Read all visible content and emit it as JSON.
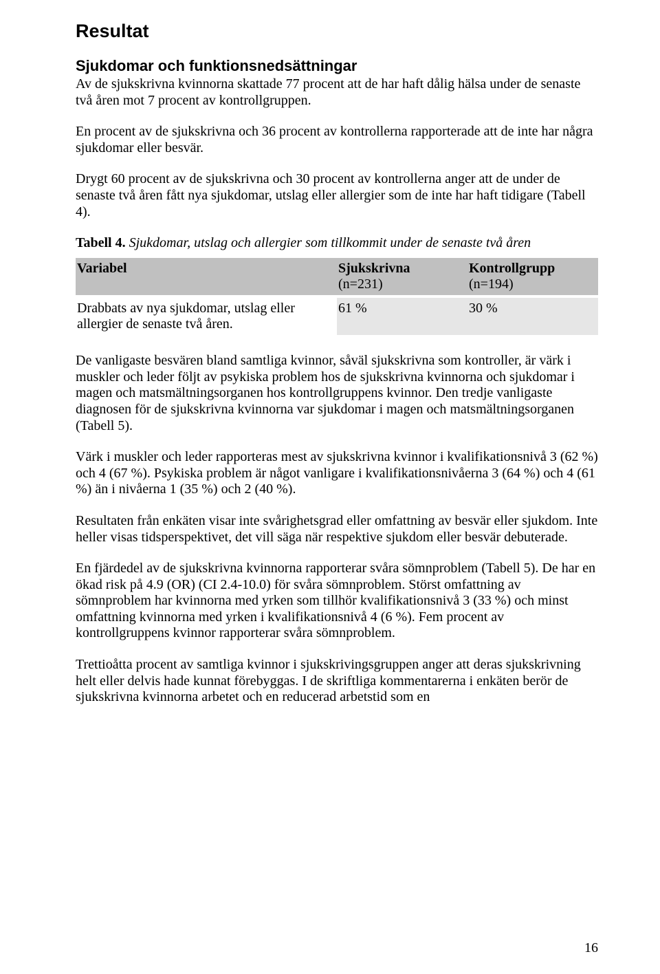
{
  "headings": {
    "h1": "Resultat",
    "h2": "Sjukdomar och funktionsnedsättningar"
  },
  "paragraphs": {
    "p1": "Av de sjukskrivna kvinnorna skattade 77 procent att de har haft dålig hälsa under de senaste två åren mot 7 procent av kontrollgruppen.",
    "p2": "En procent av de sjukskrivna och 36 procent av kontrollerna rapporterade att de inte har några sjukdomar eller besvär.",
    "p3": "Drygt 60 procent av de sjukskrivna och 30 procent av kontrollerna anger att de under de senaste två åren fått nya sjukdomar, utslag eller allergier som de inte har haft tidigare (Tabell 4).",
    "p4": "De vanligaste besvären bland samtliga kvinnor, såväl sjukskrivna som kontroller, är värk i muskler och leder följt av psykiska problem hos de sjukskrivna kvinnorna och sjukdomar i magen och matsmältningsorganen hos kontrollgruppens kvinnor. Den tredje vanligaste diagnosen för de sjukskrivna kvinnorna var sjukdomar i magen och matsmältningsorganen (Tabell 5).",
    "p5": "Värk i muskler och leder rapporteras mest av sjukskrivna kvinnor i kvalifikationsnivå 3 (62 %) och 4 (67 %). Psykiska problem är något vanligare i kvalifikationsnivåerna 3 (64 %) och 4 (61 %) än i nivåerna 1 (35 %) och 2 (40 %).",
    "p6": "Resultaten från enkäten visar inte svårighetsgrad eller omfattning av besvär eller sjukdom. Inte heller visas tidsperspektivet, det vill säga när respektive sjukdom eller besvär debuterade.",
    "p7": "En fjärdedel av de sjukskrivna kvinnorna rapporterar svåra sömnproblem (Tabell 5). De har en ökad risk på 4.9 (OR) (CI 2.4-10.0) för svåra sömnproblem. Störst omfattning av sömnproblem har kvinnorna med yrken som tillhör kvalifikationsnivå 3 (33 %) och minst omfattning kvinnorna med yrken i kvalifikationsnivå 4 (6 %). Fem procent av kontrollgruppens kvinnor rapporterar svåra sömnproblem.",
    "p8": "Trettioåtta procent av samtliga kvinnor i sjukskrivingsgruppen anger att deras sjukskrivning helt eller delvis hade kunnat förebyggas. I de skriftliga kommentarerna i enkäten berör de sjukskrivna kvinnorna arbetet och en reducerad arbetstid som en"
  },
  "table": {
    "caption_label": "Tabell 4.",
    "caption_text": " Sjukdomar, utslag och allergier som tillkommit under de senaste två åren",
    "columns": [
      {
        "title": "Variabel",
        "sub": ""
      },
      {
        "title": "Sjukskrivna",
        "sub": "(n=231)"
      },
      {
        "title": "Kontrollgrupp",
        "sub": "(n=194)"
      }
    ],
    "rows": [
      {
        "label": "Drabbats av nya sjukdomar, utslag eller allergier de senaste två åren.",
        "c2": "61 %",
        "c3": "30 %"
      }
    ],
    "header_bg": "#c0c0c0",
    "body_value_bg": "#e6e6e6"
  },
  "page_number": "16"
}
